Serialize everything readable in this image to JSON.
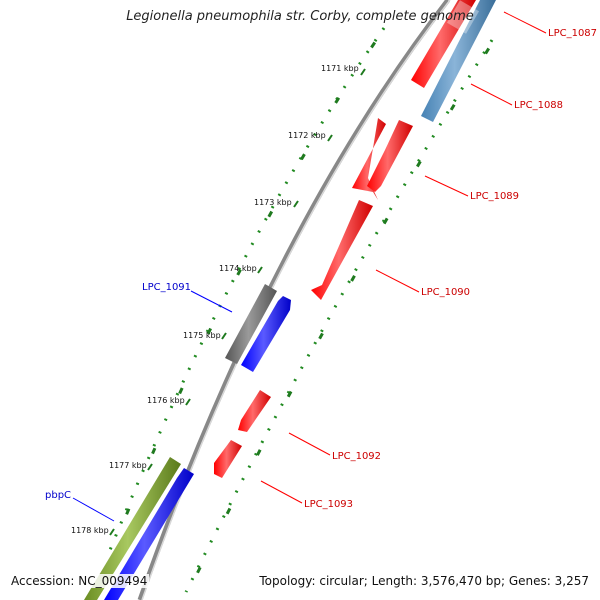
{
  "header": {
    "title": "Legionella pneumophila str. Corby, complete genome"
  },
  "footer": {
    "accession": "Accession: NC_009494",
    "summary": "Topology: circular; Length: 3,576,470 bp; Genes: 3,257"
  },
  "ticks": [
    "1171 kbp",
    "1172 kbp",
    "1173 kbp",
    "1174 kbp",
    "1175 kbp",
    "1176 kbp",
    "1177 kbp",
    "1178 kbp"
  ],
  "genes": [
    {
      "id": "LPC_1087",
      "strand": "reverse",
      "color": "#ff0000"
    },
    {
      "id": "LPC_1088",
      "strand": "reverse",
      "color": "#4682b4"
    },
    {
      "id": "LPC_1089",
      "strand": "reverse",
      "color": "#ff0000"
    },
    {
      "id": "LPC_1090",
      "strand": "reverse",
      "color": "#ff0000"
    },
    {
      "id": "LPC_1091",
      "strand": "forward",
      "color": "#666666"
    },
    {
      "id": "LPC_1092",
      "strand": "reverse",
      "color": "#ff0000"
    },
    {
      "id": "LPC_1093",
      "strand": "reverse",
      "color": "#ff0000"
    },
    {
      "id": "pbpC",
      "strand": "forward",
      "color": "#6b8e23"
    }
  ],
  "colors": {
    "backbone": "#808080",
    "gc_dots": "#228b22",
    "forward_cds": "#0000ff",
    "label_red": "#cc0000",
    "label_blue": "#0000cc"
  }
}
